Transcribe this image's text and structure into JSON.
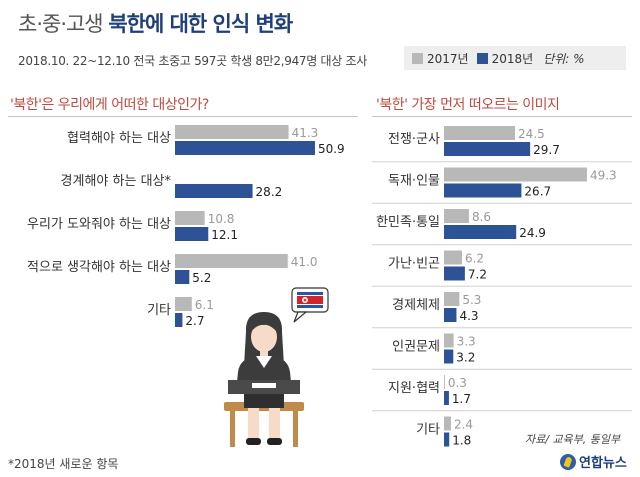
{
  "header": {
    "title_light": "초·중·고생",
    "title_bold": "북한에 대한 인식 변화",
    "subtitle": "2018.10. 22~12.10 전국 초중고 597곳 학생 8만2,947명 대상 조사"
  },
  "legend": {
    "item_2017": "2017년",
    "item_2018": "2018년",
    "unit": "단위: %"
  },
  "colors": {
    "y2017": "#b8b8b8",
    "y2018": "#2e5296",
    "accent": "#c04a3f"
  },
  "chart_data": [
    {
      "type": "bar",
      "orientation": "horizontal",
      "title": "'북한'은 우리에게 어떠한 대상인가?",
      "categories": [
        "협력해야 하는 대상",
        "경계해야 하는 대상*",
        "우리가 도와줘야 하는 대상",
        "적으로 생각해야 하는 대상",
        "기타"
      ],
      "series": [
        {
          "name": "2017년",
          "values": [
            41.3,
            null,
            10.8,
            41.0,
            6.1
          ],
          "labels": [
            "41.3",
            "",
            "10.8",
            "41.0",
            "6.1"
          ]
        },
        {
          "name": "2018년",
          "values": [
            50.9,
            28.2,
            12.1,
            5.2,
            2.7
          ],
          "labels": [
            "50.9",
            "28.2",
            "12.1",
            "5.2",
            "2.7"
          ]
        }
      ]
    },
    {
      "type": "bar",
      "orientation": "horizontal",
      "title": "'북한' 가장 먼저 떠오르는 이미지",
      "categories": [
        "전쟁·군사",
        "독재·인물",
        "한민족·통일",
        "가난·빈곤",
        "경제체제",
        "인권문제",
        "지원·협력",
        "기타"
      ],
      "series": [
        {
          "name": "2017년",
          "values": [
            24.5,
            49.3,
            8.6,
            6.2,
            5.3,
            3.3,
            0.3,
            2.4
          ],
          "labels": [
            "24.5",
            "49.3",
            "8.6",
            "6.2",
            "5.3",
            "3.3",
            "0.3",
            "2.4"
          ]
        },
        {
          "name": "2018년",
          "values": [
            29.7,
            26.7,
            24.9,
            7.2,
            4.3,
            3.2,
            1.7,
            1.8
          ],
          "labels": [
            "29.7",
            "26.7",
            "24.9",
            "7.2",
            "4.3",
            "3.2",
            "1.7",
            "1.8"
          ]
        }
      ]
    }
  ],
  "footnote": "*2018년 새로운 항목",
  "source": "자료/ 교육부, 통일부",
  "logo_text": "연합뉴스"
}
